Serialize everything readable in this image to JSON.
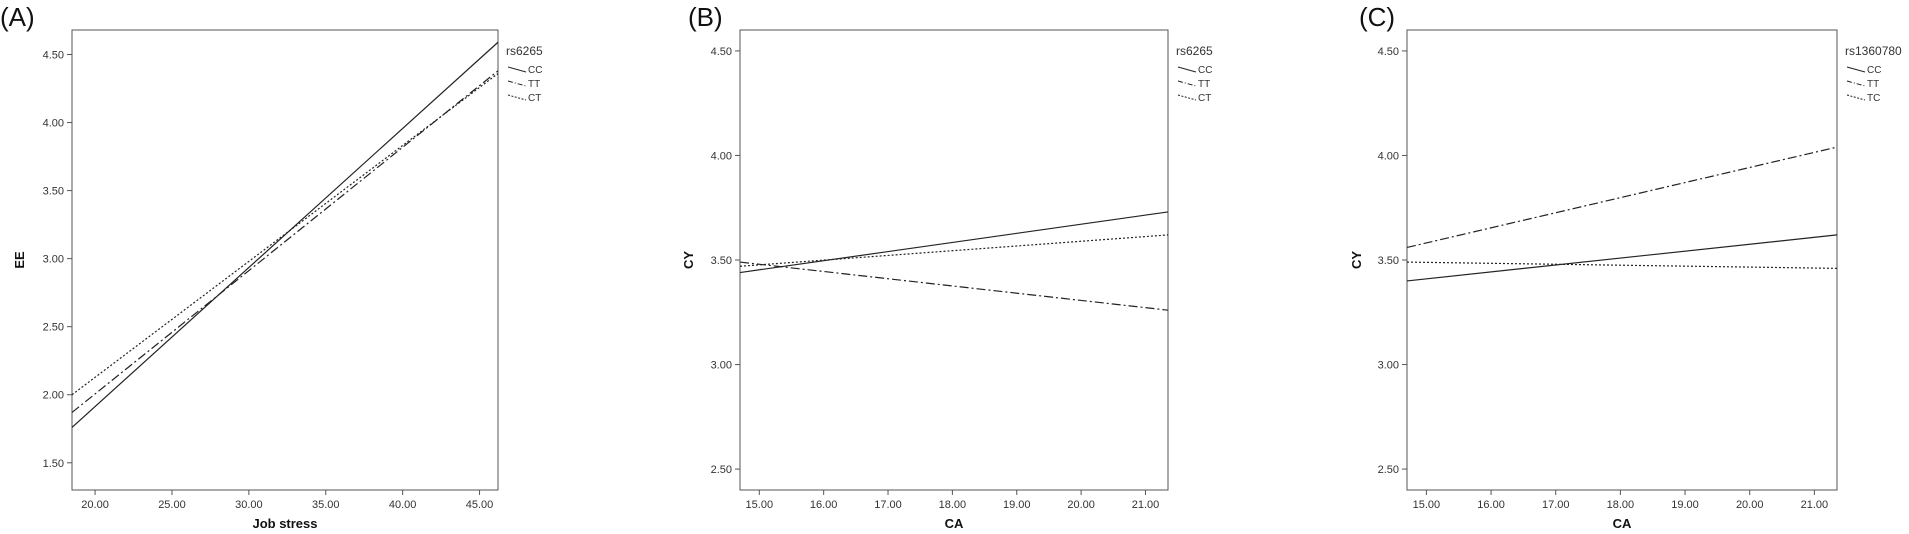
{
  "chart_data": [
    {
      "type": "line",
      "panel_label": "(A)",
      "xlabel": "Job stress",
      "ylabel": "EE",
      "xlim": [
        18.5,
        46.2
      ],
      "ylim": [
        1.3,
        4.68
      ],
      "x_ticks": [
        20,
        25,
        30,
        35,
        40,
        45
      ],
      "x_tick_labels": [
        "20.00",
        "25.00",
        "30.00",
        "35.00",
        "40.00",
        "45.00"
      ],
      "y_ticks": [
        1.5,
        2.0,
        2.5,
        3.0,
        3.5,
        4.0,
        4.5
      ],
      "y_tick_labels": [
        "1.50",
        "2.00",
        "2.50",
        "3.00",
        "3.50",
        "4.00",
        "4.50"
      ],
      "legend_title": "rs6265",
      "series": [
        {
          "name": "CC",
          "style": "solid",
          "points": [
            [
              18.5,
              1.76
            ],
            [
              46.2,
              4.59
            ]
          ]
        },
        {
          "name": "TT",
          "style": "dashdot",
          "points": [
            [
              18.5,
              1.87
            ],
            [
              46.2,
              4.38
            ]
          ]
        },
        {
          "name": "CT",
          "style": "dotted",
          "points": [
            [
              18.5,
              2.0
            ],
            [
              46.2,
              4.36
            ]
          ]
        }
      ]
    },
    {
      "type": "line",
      "panel_label": "(B)",
      "xlabel": "CA",
      "ylabel": "CY",
      "xlim": [
        14.7,
        21.35
      ],
      "ylim": [
        2.4,
        4.6
      ],
      "x_ticks": [
        15,
        16,
        17,
        18,
        19,
        20,
        21
      ],
      "x_tick_labels": [
        "15.00",
        "16.00",
        "17.00",
        "18.00",
        "19.00",
        "20.00",
        "21.00"
      ],
      "y_ticks": [
        2.5,
        3.0,
        3.5,
        4.0,
        4.5
      ],
      "y_tick_labels": [
        "2.50",
        "3.00",
        "3.50",
        "4.00",
        "4.50"
      ],
      "legend_title": "rs6265",
      "series": [
        {
          "name": "CC",
          "style": "solid",
          "points": [
            [
              14.7,
              3.44
            ],
            [
              21.35,
              3.73
            ]
          ]
        },
        {
          "name": "TT",
          "style": "dashdot",
          "points": [
            [
              14.7,
              3.49
            ],
            [
              21.35,
              3.26
            ]
          ]
        },
        {
          "name": "CT",
          "style": "dotted",
          "points": [
            [
              14.7,
              3.47
            ],
            [
              21.35,
              3.62
            ]
          ]
        }
      ]
    },
    {
      "type": "line",
      "panel_label": "(C)",
      "xlabel": "CA",
      "ylabel": "CY",
      "xlim": [
        14.7,
        21.35
      ],
      "ylim": [
        2.4,
        4.6
      ],
      "x_ticks": [
        15,
        16,
        17,
        18,
        19,
        20,
        21
      ],
      "x_tick_labels": [
        "15.00",
        "16.00",
        "17.00",
        "18.00",
        "19.00",
        "20.00",
        "21.00"
      ],
      "y_ticks": [
        2.5,
        3.0,
        3.5,
        4.0,
        4.5
      ],
      "y_tick_labels": [
        "2.50",
        "3.00",
        "3.50",
        "4.00",
        "4.50"
      ],
      "legend_title": "rs1360780",
      "series": [
        {
          "name": "CC",
          "style": "solid",
          "points": [
            [
              14.7,
              3.4
            ],
            [
              21.35,
              3.62
            ]
          ]
        },
        {
          "name": "TT",
          "style": "dashdot",
          "points": [
            [
              14.7,
              3.56
            ],
            [
              21.35,
              4.04
            ]
          ]
        },
        {
          "name": "TC",
          "style": "dotted",
          "points": [
            [
              14.7,
              3.49
            ],
            [
              21.35,
              3.46
            ]
          ]
        }
      ]
    }
  ]
}
